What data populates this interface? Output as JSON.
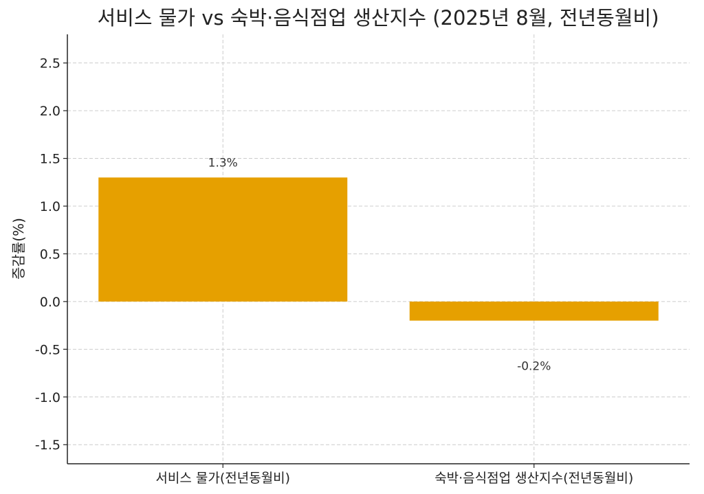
{
  "chart_data": {
    "type": "bar",
    "title": "서비스 물가 vs 숙박·음식점업 생산지수 (2025년 8월, 전년동월비)",
    "xlabel": "",
    "ylabel": "증감률(%)",
    "categories": [
      "서비스 물가(전년동월비)",
      "숙박·음식점업 생산지수(전년동월비)"
    ],
    "values": [
      1.3,
      -0.2
    ],
    "data_labels": [
      "1.3%",
      "-0.2%"
    ],
    "ylim": [
      -1.7,
      2.8
    ],
    "yticks": [
      -1.5,
      -1.0,
      -0.5,
      0.0,
      0.5,
      1.0,
      1.5,
      2.0,
      2.5
    ],
    "ytick_labels": [
      "-1.5",
      "-1.0",
      "-0.5",
      "0.0",
      "0.5",
      "1.0",
      "1.5",
      "2.0",
      "2.5"
    ],
    "bar_color": "#e6a000",
    "grid": true,
    "legend": "none"
  }
}
